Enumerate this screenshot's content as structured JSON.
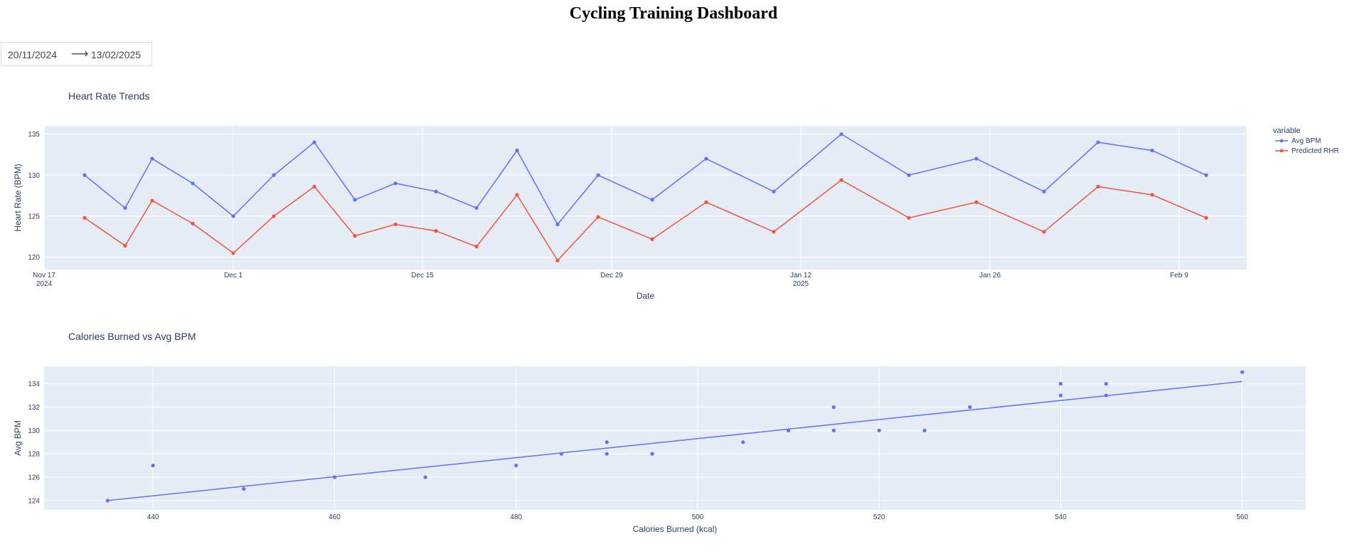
{
  "title": "Cycling Training Dashboard",
  "date_range": {
    "start": "20/11/2024",
    "end": "13/02/2025"
  },
  "chart_data": [
    {
      "type": "line",
      "title": "Heart Rate Trends",
      "xlabel": "Date",
      "ylabel": "Heart Rate (BPM)",
      "legend_title": "variable",
      "legend_position": "top-right",
      "xlim": [
        "2024-11-17",
        "2025-02-14"
      ],
      "ylim": [
        118.5,
        136
      ],
      "x_ticks": [
        {
          "date": "2024-11-17",
          "label": "Nov 17",
          "sub": "2024"
        },
        {
          "date": "2024-12-01",
          "label": "Dec 1"
        },
        {
          "date": "2024-12-15",
          "label": "Dec 15"
        },
        {
          "date": "2024-12-29",
          "label": "Dec 29"
        },
        {
          "date": "2025-01-12",
          "label": "Jan 12",
          "sub": "2025"
        },
        {
          "date": "2025-01-26",
          "label": "Jan 26"
        },
        {
          "date": "2025-02-09",
          "label": "Feb 9"
        }
      ],
      "y_ticks": [
        120,
        125,
        130,
        135
      ],
      "x": [
        "2024-11-20",
        "2024-11-23",
        "2024-11-25",
        "2024-11-28",
        "2024-12-01",
        "2024-12-04",
        "2024-12-07",
        "2024-12-10",
        "2024-12-13",
        "2024-12-16",
        "2024-12-19",
        "2024-12-22",
        "2024-12-25",
        "2024-12-28",
        "2025-01-01",
        "2025-01-05",
        "2025-01-10",
        "2025-01-15",
        "2025-01-20",
        "2025-01-25",
        "2025-01-30",
        "2025-02-03",
        "2025-02-07",
        "2025-02-11"
      ],
      "series": [
        {
          "name": "Avg BPM",
          "color": "#636efa",
          "values": [
            130,
            126,
            132,
            129,
            125,
            130,
            134,
            127,
            129,
            128,
            126,
            133,
            124,
            130,
            127,
            132,
            128,
            135,
            130,
            132,
            128,
            134,
            133,
            130
          ]
        },
        {
          "name": "Predicted RHR",
          "color": "#ef553b",
          "values": [
            124.8,
            121.4,
            126.9,
            124.1,
            120.5,
            125.0,
            128.6,
            122.6,
            124.0,
            123.2,
            121.3,
            127.6,
            119.6,
            124.9,
            122.2,
            126.7,
            123.1,
            129.4,
            124.8,
            126.7,
            123.1,
            128.6,
            127.6,
            124.8
          ]
        }
      ]
    },
    {
      "type": "scatter",
      "title": "Calories Burned vs Avg BPM",
      "xlabel": "Calories Burned (kcal)",
      "ylabel": "Avg BPM",
      "xlim": [
        428,
        567
      ],
      "ylim": [
        123.2,
        135.5
      ],
      "x_ticks": [
        440,
        460,
        480,
        500,
        520,
        540,
        560
      ],
      "y_ticks": [
        124,
        126,
        128,
        130,
        132,
        134
      ],
      "color": "#636efa",
      "points": [
        [
          435,
          124
        ],
        [
          440,
          127
        ],
        [
          450,
          125
        ],
        [
          460,
          126
        ],
        [
          470,
          126
        ],
        [
          480,
          127
        ],
        [
          485,
          128
        ],
        [
          490,
          129
        ],
        [
          490,
          128
        ],
        [
          495,
          128
        ],
        [
          505,
          129
        ],
        [
          510,
          130
        ],
        [
          515,
          132
        ],
        [
          515,
          130
        ],
        [
          520,
          130
        ],
        [
          525,
          130
        ],
        [
          530,
          132
        ],
        [
          540,
          134
        ],
        [
          540,
          133
        ],
        [
          545,
          134
        ],
        [
          545,
          133
        ],
        [
          560,
          135
        ]
      ],
      "trendline": {
        "x": [
          435,
          560
        ],
        "y": [
          124.0,
          134.2
        ]
      }
    }
  ]
}
